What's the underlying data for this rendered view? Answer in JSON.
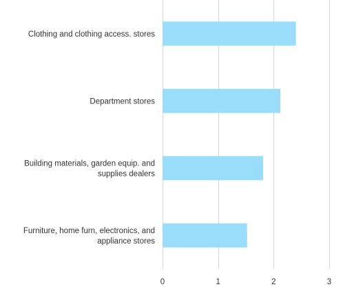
{
  "chart_data": {
    "type": "bar",
    "orientation": "horizontal",
    "categories": [
      "Clothing and clothing access. stores",
      "Department stores",
      "Building materials, garden equip. and supplies dealers",
      "Furniture, home furn, electronics, and appliance stores"
    ],
    "category_lines": [
      [
        "Clothing and clothing access. stores"
      ],
      [
        "Department stores"
      ],
      [
        "Building materials, garden equip. and",
        "supplies dealers"
      ],
      [
        "Furniture, home furn, electronics, and",
        "appliance stores"
      ]
    ],
    "values": [
      2.4,
      2.12,
      1.81,
      1.52
    ],
    "xlim": [
      0,
      3
    ],
    "xticks": [
      0,
      1,
      2,
      3
    ],
    "grid": true,
    "legend": "none",
    "bar_color": "#99ddfa",
    "grid_color": "#d9d9d9"
  }
}
